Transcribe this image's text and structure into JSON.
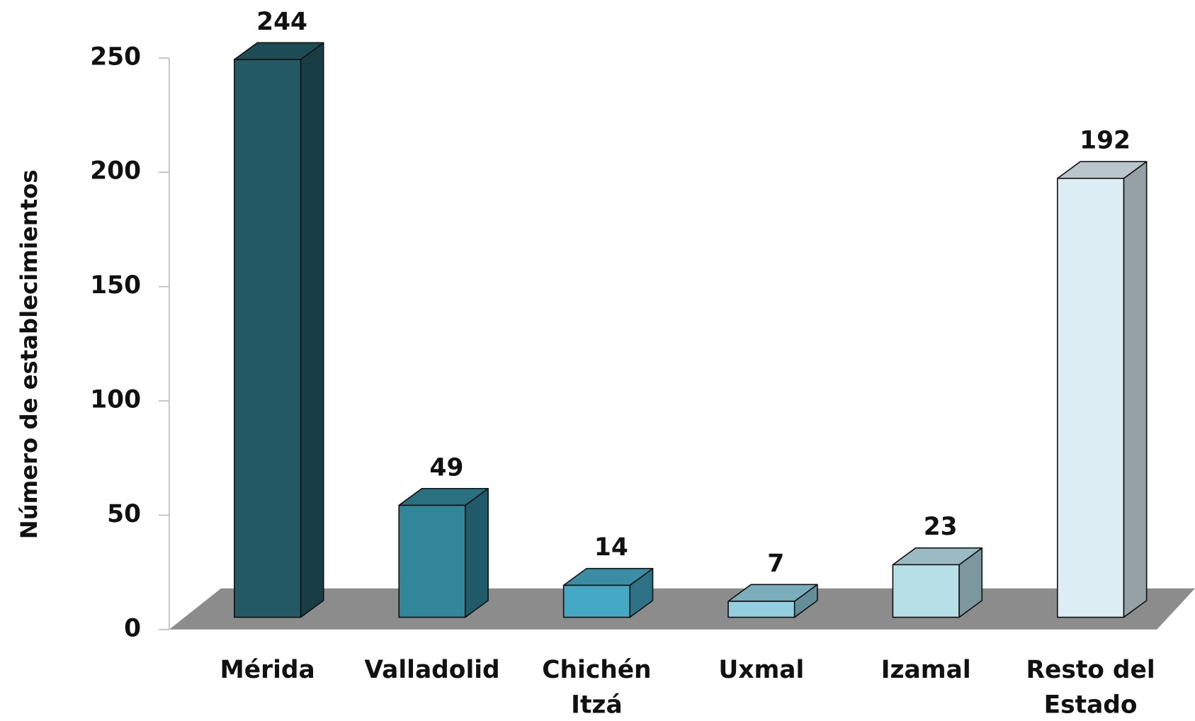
{
  "chart_data": {
    "type": "bar3d",
    "y_label": "Número de establecimientos",
    "categories": [
      "Mérida",
      "Valladolid",
      "Chichén Itzá",
      "Uxmal",
      "Izamal",
      "Resto del Estado"
    ],
    "values": [
      244,
      49,
      14,
      7,
      23,
      192
    ],
    "colors": [
      "#235a66",
      "#31869a",
      "#45a8c4",
      "#93cfe0",
      "#b7dfe8",
      "#dcedf3"
    ],
    "floor_color": "#8c8c8c",
    "ylim": [
      0,
      250
    ],
    "yticks": [
      0,
      50,
      100,
      150,
      200,
      250
    ]
  }
}
